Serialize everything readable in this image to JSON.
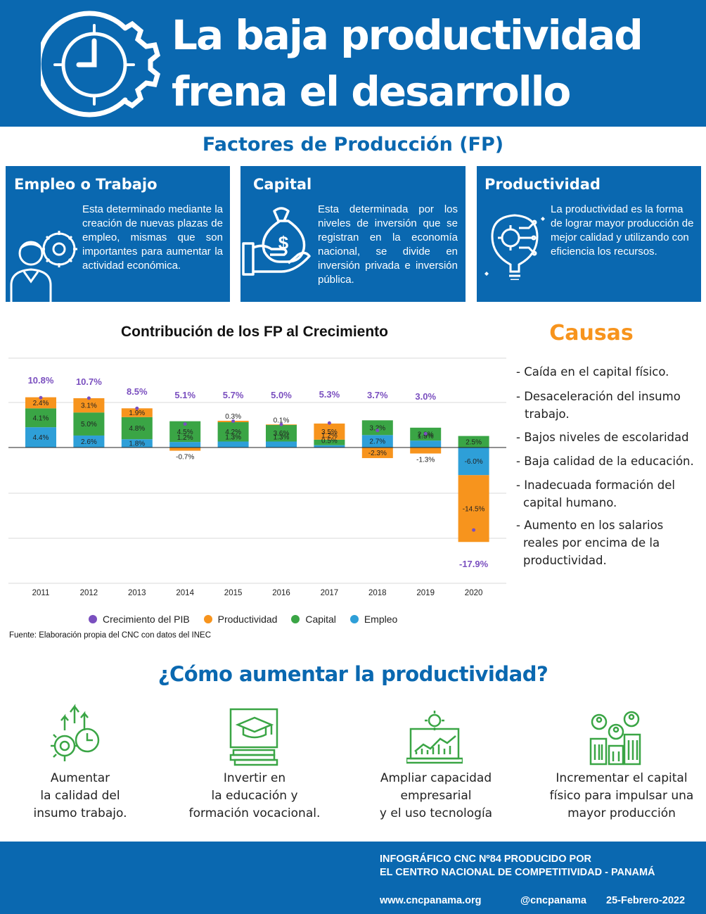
{
  "header": {
    "title_line1": "La baja productividad",
    "title_line2": "frena el desarrollo",
    "icon": "clock-gear-icon"
  },
  "factors": {
    "title": "Factores de Producción (FP)",
    "cards": [
      {
        "title": "Empleo o Trabajo",
        "text": "Esta determinado mediante la creación de nuevas plazas de empleo, mismas que son importantes para aumentar la actividad económica.",
        "icon": "worker-gear-icon"
      },
      {
        "title": "Capital",
        "text": "Esta determinada por los niveles de inversión que se registran en la economía nacional, se divide en inversión privada e inversión pública.",
        "icon": "money-bag-hand-icon"
      },
      {
        "title": "Productividad",
        "text": "La productividad es la forma de lograr mayor producción de mejor calidad y utilizando con eficiencia los recursos.",
        "icon": "lightbulb-gear-icon"
      }
    ]
  },
  "chart_title": "Contribución de los FP al Crecimiento",
  "chart_data": {
    "type": "bar",
    "stacked": true,
    "categories": [
      "2011",
      "2012",
      "2013",
      "2014",
      "2015",
      "2016",
      "2017",
      "2018",
      "2019",
      "2020"
    ],
    "series": [
      {
        "name": "Empleo",
        "color": "#2e9fd8",
        "values": [
          4.4,
          2.6,
          1.8,
          1.2,
          1.3,
          1.3,
          0.5,
          2.7,
          1.5,
          -6.0
        ]
      },
      {
        "name": "Capital",
        "color": "#3aa545",
        "values": [
          4.1,
          5.0,
          4.8,
          4.5,
          4.2,
          3.6,
          1.2,
          3.2,
          2.8,
          2.5
        ]
      },
      {
        "name": "Productividad",
        "color": "#f7941d",
        "values": [
          2.4,
          3.1,
          1.9,
          -0.7,
          0.3,
          0.1,
          3.5,
          -2.3,
          -1.3,
          -14.5
        ]
      }
    ],
    "line_series": {
      "name": "Crecimiento del PIB",
      "color": "#7a4fbf",
      "values": [
        10.8,
        10.7,
        8.5,
        5.1,
        5.7,
        5.0,
        5.3,
        3.7,
        3.0,
        -17.9
      ]
    },
    "data_labels": {
      "Empleo": [
        "4.4%",
        "2.6%",
        "1.8%",
        "1.2%",
        "1.3%",
        "1.3%",
        "0.5%",
        "2.7%",
        "1.5%",
        "-6.0%"
      ],
      "Capital": [
        "4.1%",
        "5.0%",
        "4.8%",
        "4.5%",
        "4.2%",
        "3.6%",
        "1.2%",
        "3.2%",
        "2.8%",
        "2.5%"
      ],
      "Productividad": [
        "2.4%",
        "3.1%",
        "1.9%",
        "-0.7%",
        "0.3%",
        "0.1%",
        "3.5%",
        "-2.3%",
        "-1.3%",
        "-14.5%"
      ],
      "Crecimiento del PIB": [
        "10.8%",
        "10.7%",
        "8.5%",
        "5.1%",
        "5.7%",
        "5.0%",
        "5.3%",
        "3.7%",
        "3.0%",
        "-17.9%"
      ]
    },
    "grid": true,
    "legend": "bottom"
  },
  "legend": [
    "Crecimiento del PIB",
    "Productividad",
    "Capital",
    "Empleo"
  ],
  "source": "Fuente: Elaboración propia del CNC con datos del INEC",
  "causas": {
    "title": "Causas",
    "items": [
      [
        "- Caída en el capital físico."
      ],
      [
        "- Desaceleración del insumo",
        "trabajo."
      ],
      [
        "- Bajos niveles de escolaridad"
      ],
      [
        "- Baja calidad de la educación."
      ],
      [
        "- Inadecuada formación del",
        "capital humano."
      ],
      [
        "- Aumento en los salarios",
        "reales por encima de la",
        "productividad."
      ]
    ]
  },
  "how": {
    "title": "¿Cómo aumentar la productividad?",
    "actions": [
      {
        "lines": [
          "Aumentar",
          "la calidad del",
          "insumo trabajo."
        ],
        "icon": "growth-gear-icon"
      },
      {
        "lines": [
          "Invertir en",
          "la educación y",
          "formación vocacional."
        ],
        "icon": "graduation-books-icon"
      },
      {
        "lines": [
          "Ampliar capacidad",
          "empresarial",
          "y el uso tecnología"
        ],
        "icon": "laptop-chart-icon"
      },
      {
        "lines": [
          "Incrementar el capital",
          "físico para impulsar una",
          "mayor producción"
        ],
        "icon": "people-buildings-icon"
      }
    ]
  },
  "footer": {
    "line1": "INFOGRÁFICO CNC Nº84 PRODUCIDO POR",
    "line2": "EL CENTRO NACIONAL DE COMPETITIVIDAD - PANAMÁ",
    "web": "www.cncpanama.org",
    "handle": "@cncpanama",
    "date": "25-Febrero-2022"
  }
}
